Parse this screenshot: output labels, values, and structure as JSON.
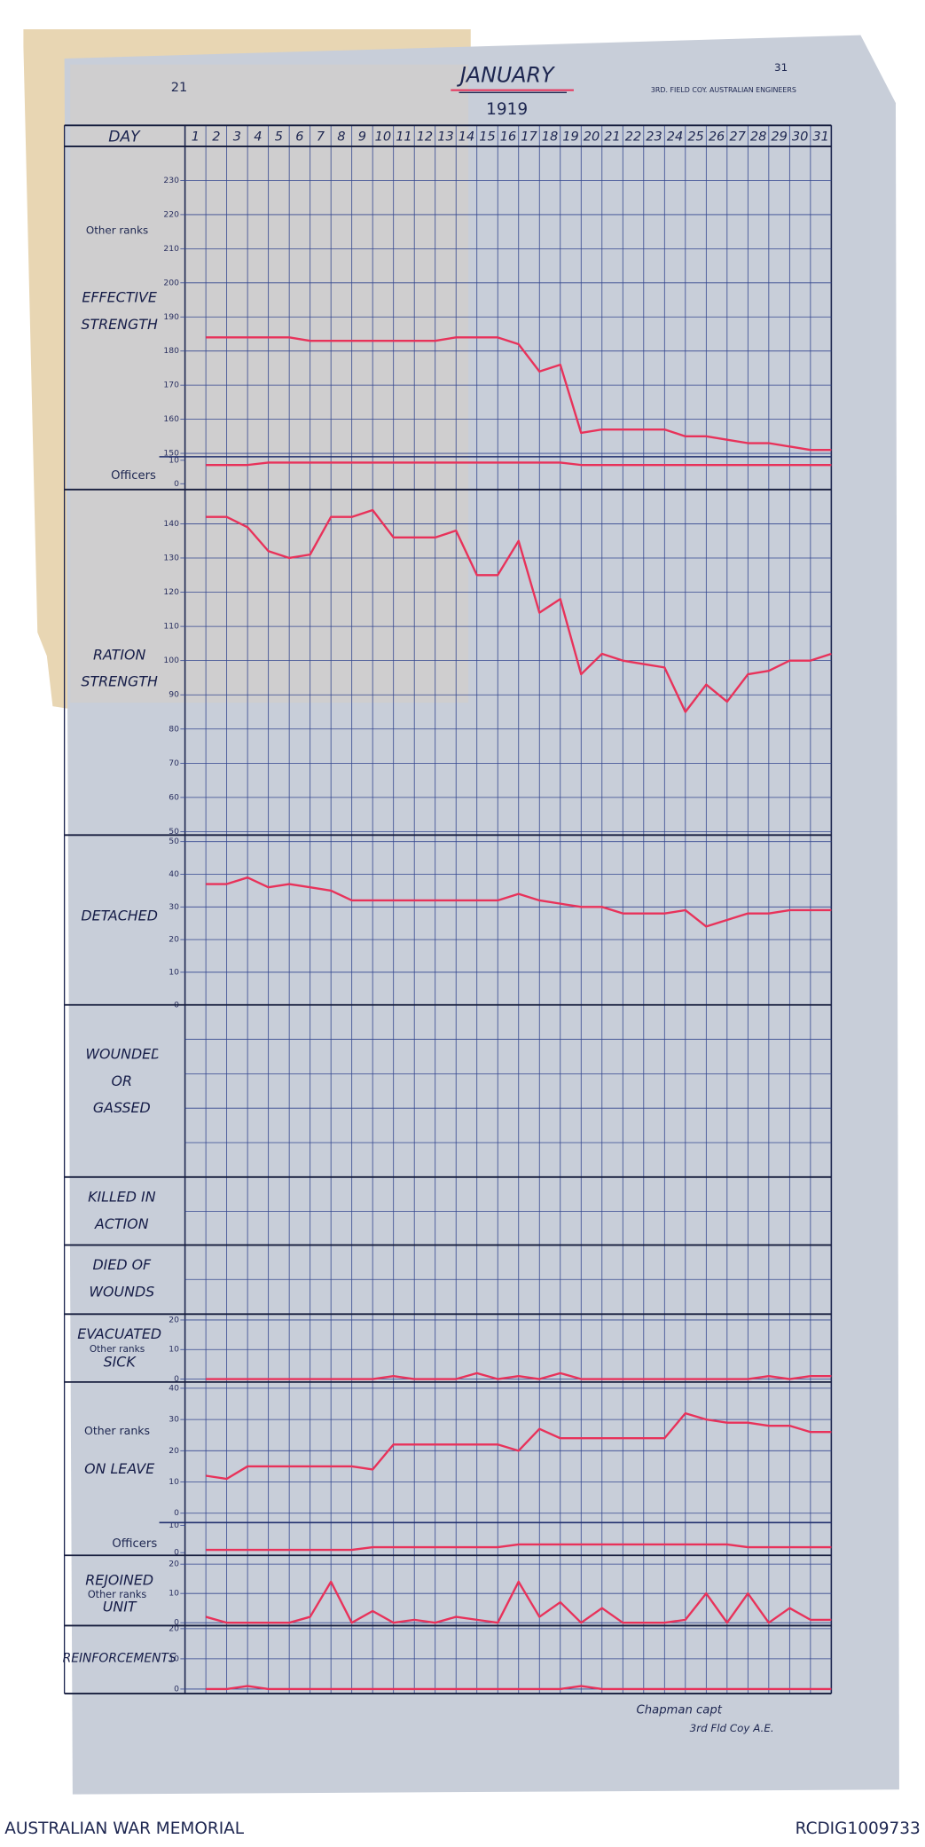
{
  "header": {
    "page_number": "21",
    "page_number_right": "31",
    "month": "JANUARY",
    "year": "1919",
    "unit": "3RD. FIELD COY. AUSTRALIAN ENGINEERS"
  },
  "day_axis": {
    "label": "DAY",
    "days": [
      1,
      2,
      3,
      4,
      5,
      6,
      7,
      8,
      9,
      10,
      11,
      12,
      13,
      14,
      15,
      16,
      17,
      18,
      19,
      20,
      21,
      22,
      23,
      24,
      25,
      26,
      27,
      28,
      29,
      30,
      31
    ]
  },
  "chart_data": [
    {
      "type": "line",
      "title": "EFFECTIVE STRENGTH",
      "grid": true,
      "ylim": [
        149,
        240
      ],
      "yticks": [
        150,
        160,
        170,
        180,
        190,
        200,
        210,
        220,
        230
      ],
      "series": [
        {
          "name": "Other ranks",
          "color": "#e8325a",
          "values": [
            184,
            184,
            184,
            184,
            184,
            183,
            183,
            183,
            183,
            183,
            183,
            183,
            184,
            184,
            184,
            182,
            174,
            176,
            156,
            157,
            157,
            157,
            157,
            155,
            155,
            154,
            153,
            153,
            152,
            151,
            151
          ]
        }
      ]
    },
    {
      "type": "line",
      "grid": false,
      "ylim": [
        -2.5,
        11.5
      ],
      "yticks": [
        0,
        10
      ],
      "series": [
        {
          "name": "Officers",
          "color": "#e8325a",
          "values": [
            8,
            8,
            8,
            9,
            9,
            9,
            9,
            9,
            9,
            9,
            9,
            9,
            9,
            9,
            9,
            9,
            9,
            9,
            8,
            8,
            8,
            8,
            8,
            8,
            8,
            8,
            8,
            8,
            8,
            8,
            8
          ]
        }
      ]
    },
    {
      "type": "line",
      "title": "RATION STRENGTH",
      "grid": true,
      "ylim": [
        49,
        150
      ],
      "yticks": [
        50,
        60,
        70,
        80,
        90,
        100,
        110,
        120,
        130,
        140
      ],
      "series": [
        {
          "color": "#e8325a",
          "values": [
            142,
            142,
            139,
            132,
            130,
            131,
            142,
            142,
            144,
            136,
            136,
            136,
            138,
            125,
            125,
            135,
            114,
            118,
            96,
            102,
            100,
            99,
            98,
            85,
            93,
            88,
            96,
            97,
            100,
            100,
            102
          ]
        }
      ]
    },
    {
      "type": "line",
      "title": "DETACHED",
      "grid": true,
      "ylim": [
        0,
        52
      ],
      "yticks": [
        0,
        10,
        20,
        30,
        40,
        50
      ],
      "series": [
        {
          "color": "#e8325a",
          "values": [
            37,
            37,
            39,
            36,
            37,
            36,
            35,
            32,
            32,
            32,
            32,
            32,
            32,
            32,
            32,
            34,
            32,
            31,
            30,
            30,
            28,
            28,
            28,
            29,
            24,
            26,
            28,
            28,
            29,
            29,
            29
          ]
        }
      ]
    },
    {
      "type": "line",
      "title": "EVACUATED SICK",
      "grid": true,
      "ylim": [
        -1,
        22
      ],
      "yticks": [
        0,
        10,
        20
      ],
      "series": [
        {
          "name": "Other ranks",
          "color": "#e8325a",
          "values": [
            0,
            0,
            0,
            0,
            0,
            0,
            0,
            0,
            0,
            1,
            0,
            0,
            0,
            2,
            0,
            1,
            0,
            2,
            0,
            0,
            0,
            0,
            0,
            0,
            0,
            0,
            0,
            1,
            0,
            1,
            1
          ]
        }
      ]
    },
    {
      "type": "line",
      "title": "ON LEAVE",
      "grid": true,
      "ylim": [
        -3,
        42
      ],
      "yticks": [
        0,
        10,
        20,
        30,
        40
      ],
      "series": [
        {
          "name": "Other ranks",
          "color": "#e8325a",
          "values": [
            12,
            11,
            15,
            15,
            15,
            15,
            15,
            15,
            14,
            22,
            22,
            22,
            22,
            22,
            22,
            20,
            27,
            24,
            24,
            24,
            24,
            24,
            24,
            32,
            30,
            29,
            29,
            28,
            28,
            26,
            26
          ]
        }
      ]
    },
    {
      "type": "line",
      "grid": false,
      "ylim": [
        -1,
        11
      ],
      "yticks": [
        0,
        10
      ],
      "series": [
        {
          "name": "Officers",
          "color": "#e8325a",
          "values": [
            1,
            1,
            1,
            1,
            1,
            1,
            1,
            1,
            2,
            2,
            2,
            2,
            2,
            2,
            2,
            3,
            3,
            3,
            3,
            3,
            3,
            3,
            3,
            3,
            3,
            3,
            2,
            2,
            2,
            2,
            2
          ]
        }
      ]
    },
    {
      "type": "line",
      "title": "REJOINED UNIT",
      "grid": true,
      "ylim": [
        -1,
        23
      ],
      "yticks": [
        0,
        10,
        20
      ],
      "series": [
        {
          "name": "Other ranks",
          "color": "#e8325a",
          "values": [
            2,
            0,
            0,
            0,
            0,
            2,
            14,
            0,
            4,
            0,
            1,
            0,
            2,
            1,
            0,
            14,
            2,
            7,
            0,
            5,
            0,
            0,
            0,
            1,
            10,
            0,
            10,
            0,
            5,
            1,
            1
          ]
        }
      ]
    },
    {
      "type": "line",
      "title": "REINFORCEMENTS",
      "grid": true,
      "ylim": [
        -1.5,
        21
      ],
      "yticks": [
        0,
        10,
        20
      ],
      "series": [
        {
          "color": "#e8325a",
          "values": [
            0,
            0,
            1,
            0,
            0,
            0,
            0,
            0,
            0,
            0,
            0,
            0,
            0,
            0,
            0,
            0,
            0,
            0,
            1,
            0,
            0,
            0,
            0,
            0,
            0,
            0,
            0,
            0,
            0,
            0,
            0
          ]
        }
      ]
    }
  ],
  "empty_panels": [
    {
      "title": "WOUNDED OR GASSED"
    },
    {
      "title": "KILLED IN ACTION"
    },
    {
      "title": "DIED OF WOUNDS"
    }
  ],
  "signature": [
    "Chapman capt",
    "3rd Fld Coy A.E."
  ],
  "footer": {
    "left": "AUSTRALIAN WAR MEMORIAL",
    "right": "RCDIG1009733"
  }
}
